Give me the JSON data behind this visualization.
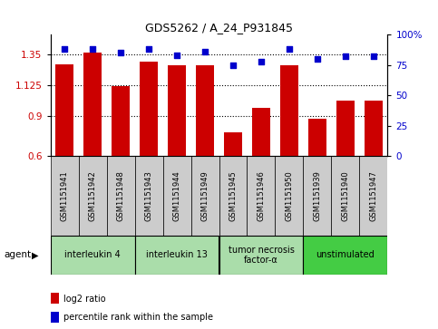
{
  "title": "GDS5262 / A_24_P931845",
  "samples": [
    "GSM1151941",
    "GSM1151942",
    "GSM1151948",
    "GSM1151943",
    "GSM1151944",
    "GSM1151949",
    "GSM1151945",
    "GSM1151946",
    "GSM1151950",
    "GSM1151939",
    "GSM1151940",
    "GSM1151947"
  ],
  "log2_ratio": [
    1.28,
    1.37,
    1.12,
    1.3,
    1.27,
    1.27,
    0.78,
    0.96,
    1.27,
    0.88,
    1.01,
    1.01
  ],
  "percentile": [
    88,
    88,
    85,
    88,
    83,
    86,
    75,
    78,
    88,
    80,
    82,
    82
  ],
  "bar_color": "#cc0000",
  "dot_color": "#0000cc",
  "ylim_left": [
    0.6,
    1.5
  ],
  "ylim_right": [
    0,
    100
  ],
  "yticks_left": [
    0.6,
    0.9,
    1.125,
    1.35
  ],
  "yticks_right": [
    0,
    25,
    50,
    75,
    100
  ],
  "ytick_labels_left": [
    "0.6",
    "0.9",
    "1.125",
    "1.35"
  ],
  "ytick_labels_right": [
    "0",
    "25",
    "50",
    "75",
    "100%"
  ],
  "hlines": [
    0.9,
    1.125,
    1.35
  ],
  "agent_groups": [
    {
      "label": "interleukin 4",
      "start": 0,
      "end": 3,
      "color": "#aaddaa"
    },
    {
      "label": "interleukin 13",
      "start": 3,
      "end": 6,
      "color": "#aaddaa"
    },
    {
      "label": "tumor necrosis\nfactor-α",
      "start": 6,
      "end": 9,
      "color": "#aaddaa"
    },
    {
      "label": "unstimulated",
      "start": 9,
      "end": 12,
      "color": "#44cc44"
    }
  ],
  "legend_items": [
    {
      "color": "#cc0000",
      "label": "log2 ratio"
    },
    {
      "color": "#0000cc",
      "label": "percentile rank within the sample"
    }
  ],
  "background_color": "#ffffff",
  "sample_box_color": "#cccccc",
  "agent_border_color": "#008800"
}
